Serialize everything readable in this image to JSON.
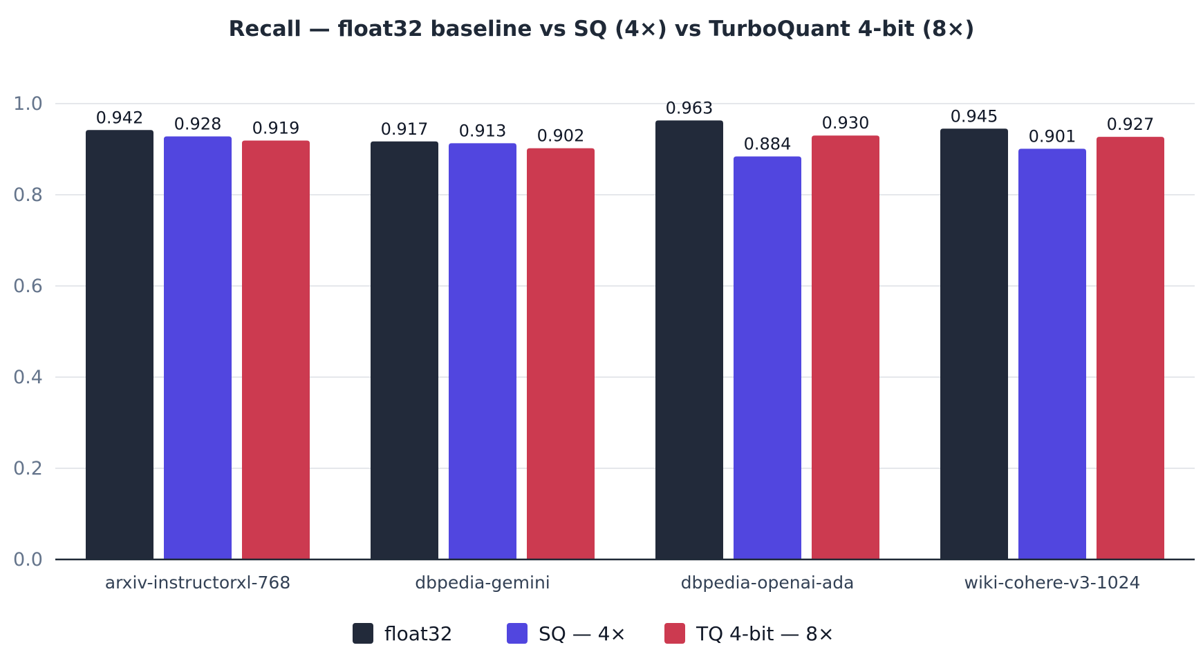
{
  "chart_data": {
    "type": "bar",
    "title": "Recall — float32 baseline vs SQ (4×) vs TurboQuant 4-bit (8×)",
    "xlabel": "",
    "ylabel": "",
    "ylim": [
      0,
      1.0
    ],
    "yticks": [
      "0.0",
      "0.2",
      "0.4",
      "0.6",
      "0.8",
      "1.0"
    ],
    "ytick_values": [
      0,
      0.2,
      0.4,
      0.6,
      0.8,
      1.0
    ],
    "grid": true,
    "legend_position": "bottom-center",
    "categories": [
      "arxiv-instructorxl-768",
      "dbpedia-gemini",
      "dbpedia-openai-ada",
      "wiki-cohere-v3-1024"
    ],
    "series": [
      {
        "name": "float32",
        "color": "#222a3a",
        "values": [
          0.942,
          0.917,
          0.963,
          0.945
        ],
        "labels": [
          "0.942",
          "0.917",
          "0.963",
          "0.945"
        ]
      },
      {
        "name": "SQ — 4×",
        "color": "#5146df",
        "values": [
          0.928,
          0.913,
          0.884,
          0.901
        ],
        "labels": [
          "0.928",
          "0.913",
          "0.884",
          "0.901"
        ]
      },
      {
        "name": "TQ 4-bit — 8×",
        "color": "#cc3a50",
        "values": [
          0.919,
          0.902,
          0.93,
          0.927
        ],
        "labels": [
          "0.919",
          "0.902",
          "0.930",
          "0.927"
        ]
      }
    ]
  }
}
